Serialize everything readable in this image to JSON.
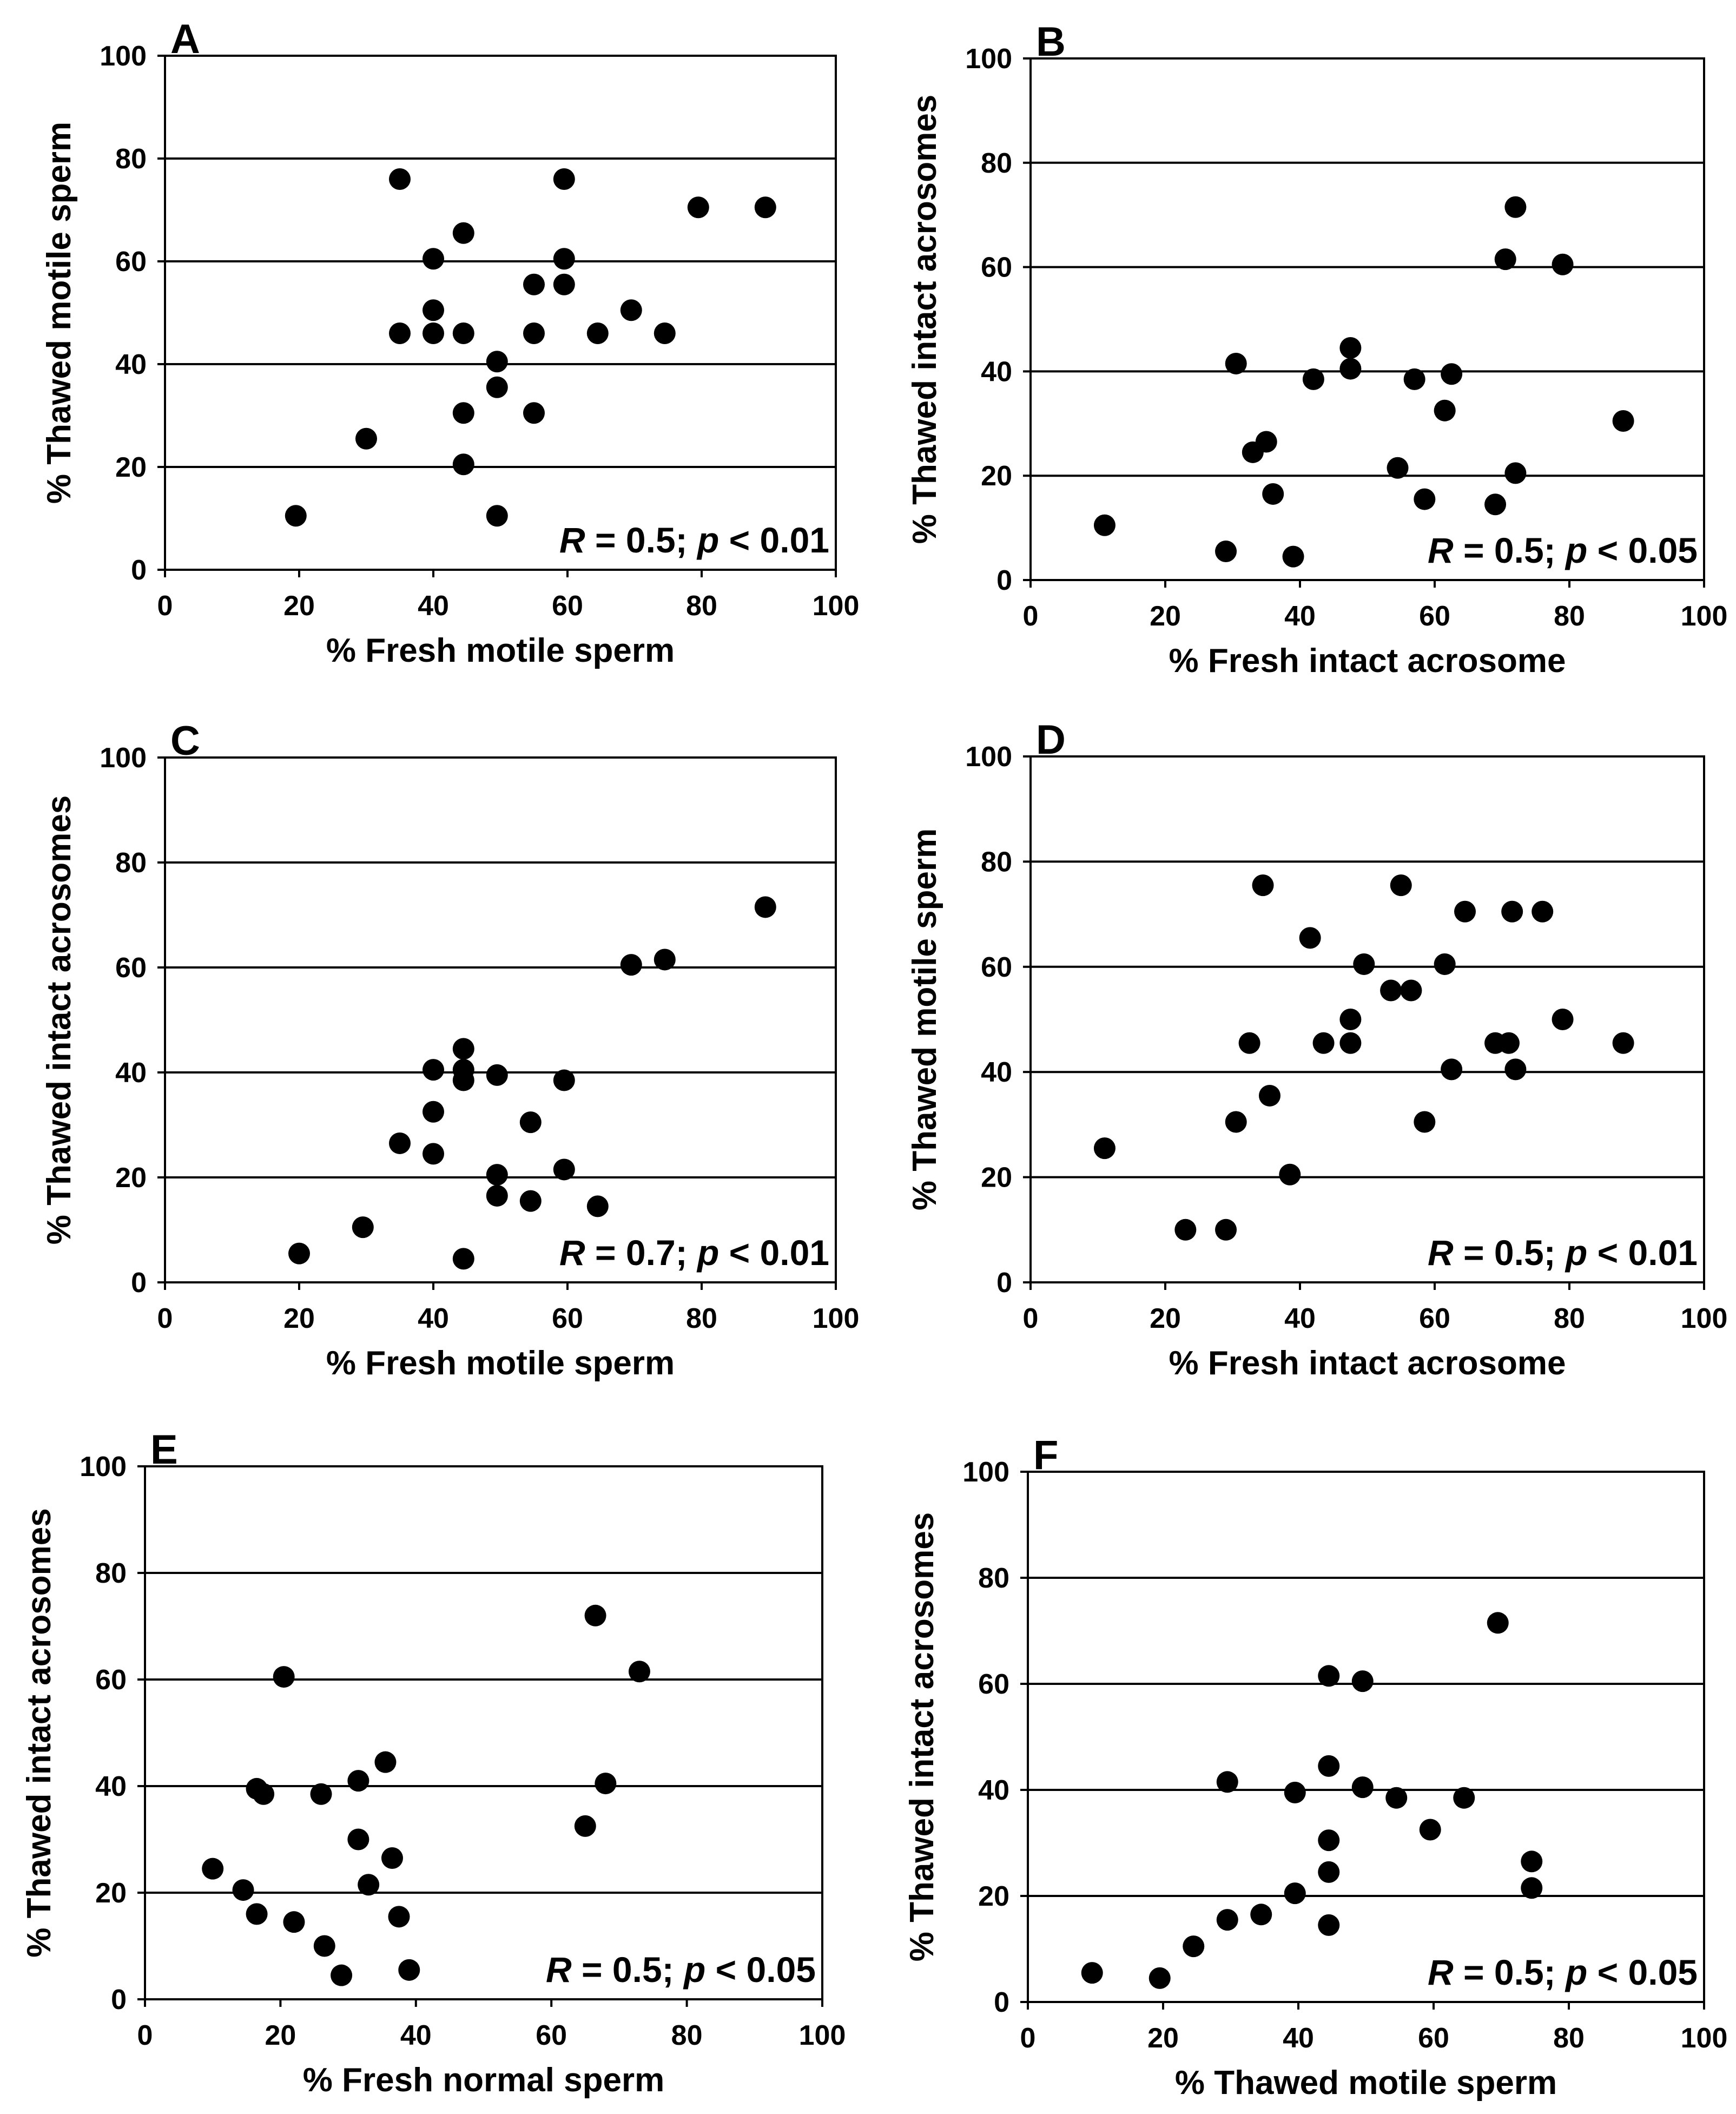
{
  "colors": {
    "background": "#ffffff",
    "ink": "#000000",
    "marker": "#000000"
  },
  "chart_data": [
    {
      "type": "scatter",
      "panel": "A",
      "xlabel": "% Fresh motile sperm",
      "ylabel": "% Thawed motile sperm",
      "xlim": [
        0,
        100
      ],
      "ylim": [
        0,
        100
      ],
      "xticks": [
        "0",
        "20",
        "40",
        "60",
        "80",
        "100"
      ],
      "yticks": [
        "0",
        "20",
        "40",
        "60",
        "80",
        "100"
      ],
      "grid": "horizontal",
      "annotation": {
        "italic_1": "R",
        "text_1": " = 0.5; ",
        "italic_2": "p",
        "text_2": " < 0.01"
      },
      "points": [
        [
          19.5,
          10.5
        ],
        [
          30,
          25.5
        ],
        [
          35,
          76
        ],
        [
          35,
          46
        ],
        [
          40,
          60.5
        ],
        [
          40,
          50.5
        ],
        [
          40,
          46
        ],
        [
          44.5,
          65.5
        ],
        [
          44.5,
          46
        ],
        [
          44.5,
          30.5
        ],
        [
          44.5,
          20.5
        ],
        [
          49.5,
          40.5
        ],
        [
          49.5,
          35.5
        ],
        [
          49.5,
          10.5
        ],
        [
          55,
          55.5
        ],
        [
          55,
          46
        ],
        [
          55,
          30.5
        ],
        [
          59.5,
          76
        ],
        [
          59.5,
          60.5
        ],
        [
          59.5,
          55.5
        ],
        [
          64.5,
          46
        ],
        [
          69.5,
          50.5
        ],
        [
          74.5,
          46
        ],
        [
          79.5,
          70.5
        ],
        [
          89.5,
          70.5
        ]
      ]
    },
    {
      "type": "scatter",
      "panel": "B",
      "xlabel": "% Fresh intact acrosome",
      "ylabel": "% Thawed intact acrosomes",
      "xlim": [
        0,
        100
      ],
      "ylim": [
        0,
        100
      ],
      "xticks": [
        "0",
        "20",
        "40",
        "60",
        "80",
        "100"
      ],
      "yticks": [
        "0",
        "20",
        "40",
        "60",
        "80",
        "100"
      ],
      "grid": "horizontal",
      "annotation": {
        "italic_1": "R",
        "text_1": " = 0.5; ",
        "italic_2": "p",
        "text_2": " < 0.05"
      },
      "points": [
        [
          11,
          10.5
        ],
        [
          29,
          5.5
        ],
        [
          30.5,
          41.5
        ],
        [
          33,
          24.5
        ],
        [
          35,
          26.5
        ],
        [
          36,
          16.5
        ],
        [
          39,
          4.5
        ],
        [
          42,
          38.5
        ],
        [
          47.5,
          44.5
        ],
        [
          47.5,
          40.5
        ],
        [
          54.5,
          21.5
        ],
        [
          57,
          38.5
        ],
        [
          58.5,
          15.5
        ],
        [
          61.5,
          32.5
        ],
        [
          62.5,
          39.5
        ],
        [
          69,
          14.5
        ],
        [
          70.5,
          61.5
        ],
        [
          72,
          71.5
        ],
        [
          72,
          20.5
        ],
        [
          79,
          60.5
        ],
        [
          88,
          30.5
        ]
      ]
    },
    {
      "type": "scatter",
      "panel": "C",
      "xlabel": "% Fresh motile sperm",
      "ylabel": "% Thawed intact acrosomes",
      "xlim": [
        0,
        100
      ],
      "ylim": [
        0,
        100
      ],
      "xticks": [
        "0",
        "20",
        "40",
        "60",
        "80",
        "100"
      ],
      "yticks": [
        "0",
        "20",
        "40",
        "60",
        "80",
        "100"
      ],
      "grid": "horizontal",
      "annotation": {
        "italic_1": "R",
        "text_1": " = 0.7; ",
        "italic_2": "p",
        "text_2": " < 0.01"
      },
      "points": [
        [
          20,
          5.5
        ],
        [
          29.5,
          10.5
        ],
        [
          35,
          26.5
        ],
        [
          40,
          40.5
        ],
        [
          40,
          32.5
        ],
        [
          40,
          24.5
        ],
        [
          44.5,
          44.5
        ],
        [
          44.5,
          40.5
        ],
        [
          44.5,
          38.5
        ],
        [
          44.5,
          4.5
        ],
        [
          49.5,
          39.5
        ],
        [
          49.5,
          20.5
        ],
        [
          49.5,
          16.5
        ],
        [
          54.5,
          30.5
        ],
        [
          54.5,
          15.5
        ],
        [
          59.5,
          38.5
        ],
        [
          59.5,
          21.5
        ],
        [
          64.5,
          14.5
        ],
        [
          69.5,
          60.5
        ],
        [
          74.5,
          61.5
        ],
        [
          89.5,
          71.5
        ]
      ]
    },
    {
      "type": "scatter",
      "panel": "D",
      "xlabel": "% Fresh intact acrosome",
      "ylabel": "% Thawed motile sperm",
      "xlim": [
        0,
        100
      ],
      "ylim": [
        0,
        100
      ],
      "xticks": [
        "0",
        "20",
        "40",
        "60",
        "80",
        "100"
      ],
      "yticks": [
        "0",
        "20",
        "40",
        "60",
        "80",
        "100"
      ],
      "grid": "horizontal",
      "annotation": {
        "italic_1": "R",
        "text_1": " = 0.5; ",
        "italic_2": "p",
        "text_2": " < 0.01"
      },
      "points": [
        [
          11,
          25.5
        ],
        [
          23,
          10
        ],
        [
          29,
          10
        ],
        [
          30.5,
          30.5
        ],
        [
          32.5,
          45.5
        ],
        [
          34.5,
          75.5
        ],
        [
          35.5,
          35.5
        ],
        [
          38.5,
          20.5
        ],
        [
          41.5,
          65.5
        ],
        [
          43.5,
          45.5
        ],
        [
          47.5,
          50
        ],
        [
          47.5,
          45.5
        ],
        [
          49.5,
          60.5
        ],
        [
          53.5,
          55.5
        ],
        [
          55,
          75.5
        ],
        [
          56.5,
          55.5
        ],
        [
          61.5,
          60.5
        ],
        [
          62.5,
          40.5
        ],
        [
          64.5,
          70.5
        ],
        [
          58.5,
          30.5
        ],
        [
          69,
          45.5
        ],
        [
          71,
          45.5
        ],
        [
          71.5,
          70.5
        ],
        [
          72,
          40.5
        ],
        [
          76,
          70.5
        ],
        [
          79,
          50
        ],
        [
          88,
          45.5
        ]
      ]
    },
    {
      "type": "scatter",
      "panel": "E",
      "xlabel": "% Fresh normal sperm",
      "ylabel": "% Thawed intact acrosomes",
      "xlim": [
        0,
        100
      ],
      "ylim": [
        0,
        100
      ],
      "xticks": [
        "0",
        "20",
        "40",
        "60",
        "80",
        "100"
      ],
      "yticks": [
        "0",
        "20",
        "40",
        "60",
        "80",
        "100"
      ],
      "grid": "horizontal",
      "annotation": {
        "italic_1": "R",
        "text_1": " = 0.5; ",
        "italic_2": "p",
        "text_2": " < 0.05"
      },
      "points": [
        [
          10,
          24.5
        ],
        [
          14.5,
          20.5
        ],
        [
          16.5,
          16
        ],
        [
          16.5,
          39.5
        ],
        [
          17.5,
          38.5
        ],
        [
          20.5,
          60.5
        ],
        [
          22,
          14.5
        ],
        [
          26,
          38.5
        ],
        [
          26.5,
          10
        ],
        [
          29,
          4.5
        ],
        [
          31.5,
          41
        ],
        [
          31.5,
          30
        ],
        [
          33,
          21.5
        ],
        [
          35.5,
          44.5
        ],
        [
          36.5,
          26.5
        ],
        [
          37.5,
          15.5
        ],
        [
          39,
          5.5
        ],
        [
          65,
          32.5
        ],
        [
          66.5,
          72
        ],
        [
          68,
          40.5
        ],
        [
          73,
          61.5
        ]
      ]
    },
    {
      "type": "scatter",
      "panel": "F",
      "xlabel": "% Thawed motile sperm",
      "ylabel": "% Thawed intact acrosomes",
      "xlim": [
        0,
        100
      ],
      "ylim": [
        0,
        100
      ],
      "xticks": [
        "0",
        "20",
        "40",
        "60",
        "80",
        "100"
      ],
      "yticks": [
        "0",
        "20",
        "40",
        "60",
        "80",
        "100"
      ],
      "grid": "horizontal",
      "annotation": {
        "italic_1": "R",
        "text_1": " = 0.5; ",
        "italic_2": "p",
        "text_2": " < 0.05"
      },
      "points": [
        [
          9.5,
          5.5
        ],
        [
          19.5,
          4.5
        ],
        [
          24.5,
          10.5
        ],
        [
          29.5,
          15.5
        ],
        [
          29.5,
          41.5
        ],
        [
          34.5,
          16.5
        ],
        [
          39.5,
          20.5
        ],
        [
          39.5,
          39.5
        ],
        [
          44.5,
          61.5
        ],
        [
          44.5,
          44.5
        ],
        [
          44.5,
          30.5
        ],
        [
          44.5,
          24.5
        ],
        [
          44.5,
          14.5
        ],
        [
          49.5,
          60.5
        ],
        [
          49.5,
          40.5
        ],
        [
          54.5,
          38.5
        ],
        [
          59.5,
          32.5
        ],
        [
          64.5,
          38.5
        ],
        [
          69.5,
          71.5
        ],
        [
          74.5,
          26.5
        ],
        [
          74.5,
          21.5
        ]
      ]
    }
  ]
}
